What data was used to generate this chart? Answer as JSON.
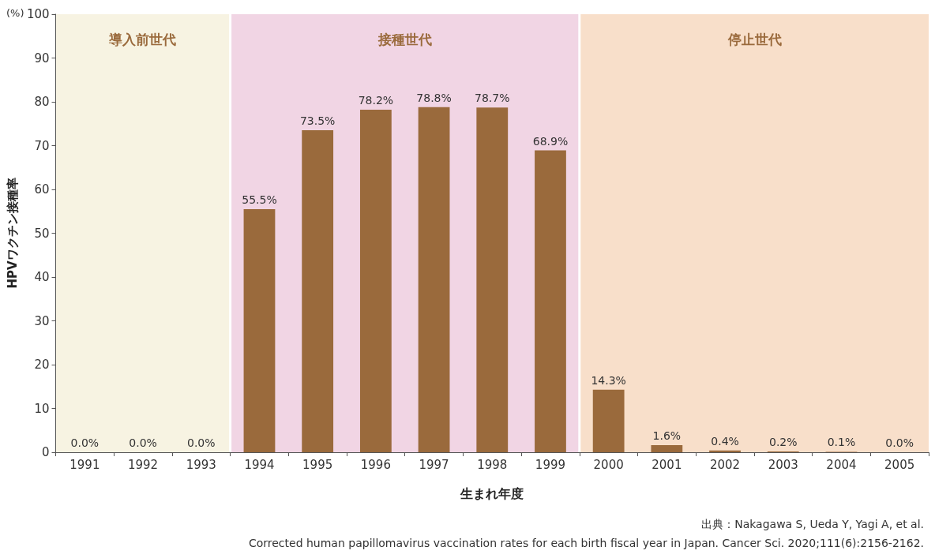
{
  "chart_data": {
    "type": "bar",
    "xlabel": "生まれ年度",
    "ylabel": "HPVワクチン接種率",
    "categories": [
      "1991",
      "1992",
      "1993",
      "1994",
      "1995",
      "1996",
      "1997",
      "1998",
      "1999",
      "2000",
      "2001",
      "2002",
      "2003",
      "2004",
      "2005"
    ],
    "values": [
      0.0,
      0.0,
      0.0,
      55.5,
      73.5,
      78.2,
      78.8,
      78.7,
      68.9,
      14.3,
      1.6,
      0.4,
      0.2,
      0.1,
      0.0
    ],
    "value_labels": [
      "0.0%",
      "0.0%",
      "0.0%",
      "55.5%",
      "73.5%",
      "78.2%",
      "78.8%",
      "78.7%",
      "68.9%",
      "14.3%",
      "1.6%",
      "0.4%",
      "0.2%",
      "0.1%",
      "0.0%"
    ],
    "color": "#9a6a3c",
    "ylim": [
      0,
      100
    ],
    "yticks": [
      0,
      10,
      20,
      30,
      40,
      50,
      60,
      70,
      80,
      90,
      100
    ],
    "grid": false,
    "bands": [
      {
        "axis": "x",
        "from": "1991",
        "to": "1993",
        "label": "導入前世代",
        "color": "#f7f3e2"
      },
      {
        "axis": "x",
        "from": "1994",
        "to": "1999",
        "label": "接種世代",
        "color": "#f1d5e4"
      },
      {
        "axis": "x",
        "from": "2000",
        "to": "2005",
        "label": "停止世代",
        "color": "#f8dfca"
      }
    ],
    "annotations": [
      "(%)",
      "出典：Nakagawa S, Ueda Y, Yagi A, et al.",
      "Corrected human papillomavirus vaccination rates for each birth fiscal year in Japan. Cancer Sci. 2020;111(6):2156-2162."
    ]
  }
}
